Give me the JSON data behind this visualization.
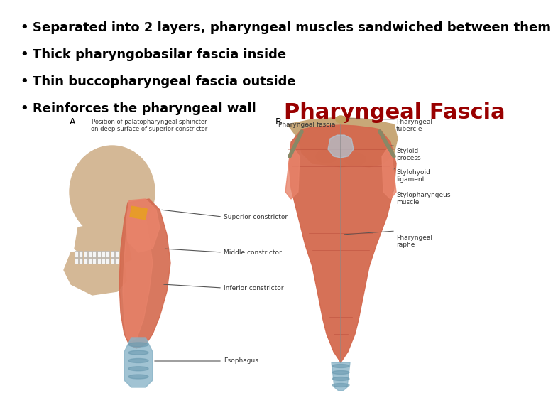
{
  "background_color": "#ffffff",
  "bullet_points": [
    "Separated into 2 layers, pharyngeal muscles sandwiched between them",
    "Thick pharyngobasilar fascia inside",
    "Thin buccopharyngeal fascia outside",
    "Reinforces the pharyngeal wall"
  ],
  "title": "Pharyngeal Fascia",
  "title_color": "#990000",
  "title_fontsize": 22,
  "bullet_fontsize": 13,
  "bullet_color": "#000000",
  "label_fontsize": 6.5,
  "label_color": "#333333",
  "skull_color": "#d4b896",
  "muscle_color_main": "#e8836a",
  "muscle_color_dark": "#c05a3a",
  "muscle_color_mid": "#d4694e",
  "blue_color": "#8ab4c8",
  "orange_color": "#e8a020",
  "white_color": "#f5f5f5",
  "bone_top_color": "#c8a878"
}
